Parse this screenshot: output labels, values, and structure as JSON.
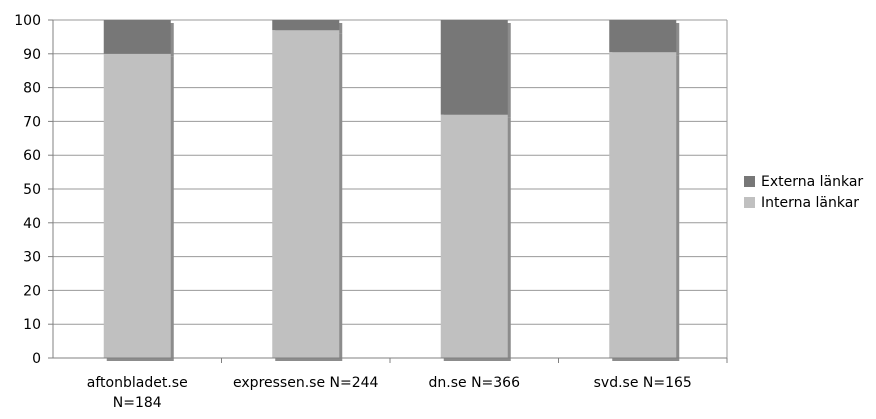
{
  "chart_data": {
    "type": "bar",
    "stacked": true,
    "categories": [
      [
        "aftonbladet.se",
        "N=184"
      ],
      [
        "expressen.se N=244"
      ],
      [
        "dn.se N=366"
      ],
      [
        "svd.se N=165"
      ]
    ],
    "series": [
      {
        "name": "Interna länkar",
        "color": "#c0c0c0",
        "values": [
          90,
          97,
          72,
          90.5
        ]
      },
      {
        "name": "Externa länkar",
        "color": "#777777",
        "values": [
          10,
          3,
          28,
          9.5
        ]
      }
    ],
    "ylim": [
      0,
      100
    ],
    "yticks": [
      "0",
      "10",
      "20",
      "30",
      "40",
      "50",
      "60",
      "70",
      "80",
      "90",
      "100"
    ],
    "grid": true,
    "legend_position": "right",
    "title": "",
    "xlabel": "",
    "ylabel": ""
  },
  "legend": {
    "items": [
      {
        "label": "Externa länkar",
        "color": "#777777"
      },
      {
        "label": "Interna länkar",
        "color": "#c0c0c0"
      }
    ]
  }
}
